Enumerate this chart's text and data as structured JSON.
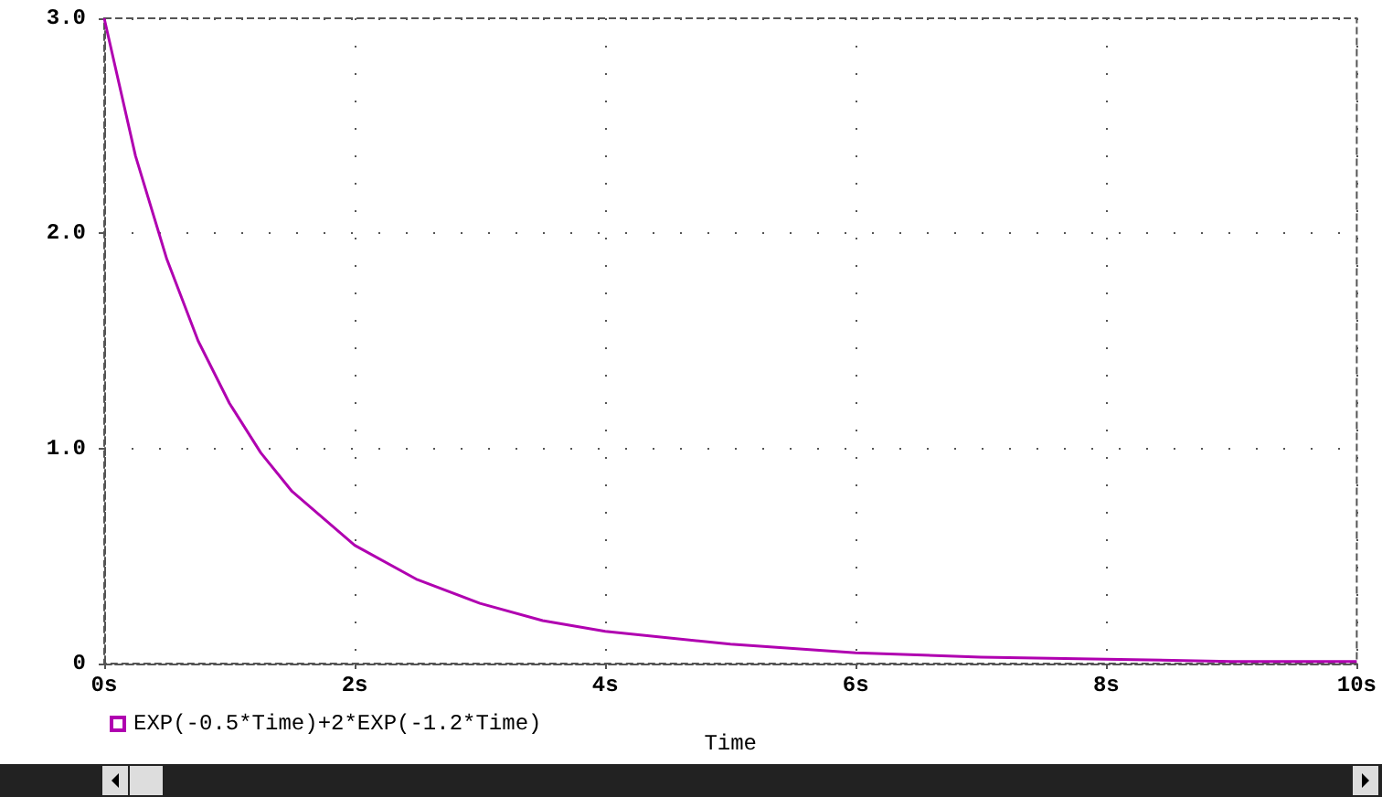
{
  "chart_data": {
    "type": "line",
    "xlabel": "Time",
    "x": [
      0,
      0.25,
      0.5,
      0.75,
      1,
      1.25,
      1.5,
      2,
      2.5,
      3,
      3.5,
      4,
      5,
      6,
      7,
      8,
      9,
      10
    ],
    "series": [
      {
        "name": "EXP(-0.5*Time)+2*EXP(-1.2*Time)",
        "color": "#b000b0",
        "values": [
          3,
          2.36,
          1.88,
          1.5,
          1.21,
          0.98,
          0.8,
          0.55,
          0.39,
          0.28,
          0.2,
          0.15,
          0.09,
          0.05,
          0.03,
          0.02,
          0.01,
          0.01
        ]
      }
    ],
    "xlim": [
      0,
      10
    ],
    "xticks": [
      {
        "value": 0,
        "label": "0s"
      },
      {
        "value": 2,
        "label": "2s"
      },
      {
        "value": 4,
        "label": "4s"
      },
      {
        "value": 6,
        "label": "6s"
      },
      {
        "value": 8,
        "label": "8s"
      },
      {
        "value": 10,
        "label": "10s"
      }
    ],
    "ylim": [
      0,
      3
    ],
    "yticks": [
      0,
      {
        "value": 1,
        "label": "1.0"
      },
      {
        "value": 2,
        "label": "2.0"
      },
      {
        "value": 3,
        "label": "3.0"
      }
    ],
    "grid": true,
    "legend": "bottom left",
    "line_style": "solid"
  }
}
